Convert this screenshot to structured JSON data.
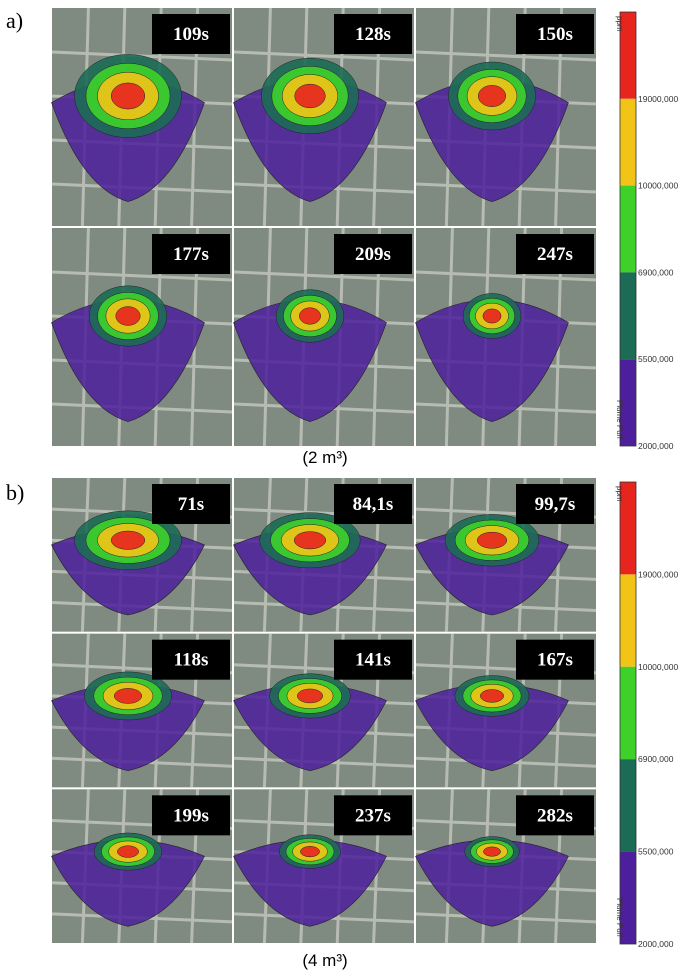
{
  "panels": [
    {
      "label": "a)",
      "caption": "(2 m³)",
      "times": [
        "109s",
        "128s",
        "150s",
        "177s",
        "209s",
        "247s"
      ],
      "legend": {
        "unit": "ppm",
        "name": "Plume Puff",
        "levels": [
          "19000,000",
          "10000,000",
          "6900,000",
          "5500,000",
          "2000,000"
        ]
      }
    },
    {
      "label": "b)",
      "caption": "(4 m³)",
      "times": [
        "71s",
        "84,1s",
        "99,7s",
        "118s",
        "141s",
        "167s",
        "199s",
        "237s",
        "282s"
      ],
      "legend": {
        "unit": "ppm",
        "name": "Plume Puff",
        "levels": [
          "19000,000",
          "10000,000",
          "6900,000",
          "5500,000",
          "2000,000"
        ]
      }
    }
  ]
}
